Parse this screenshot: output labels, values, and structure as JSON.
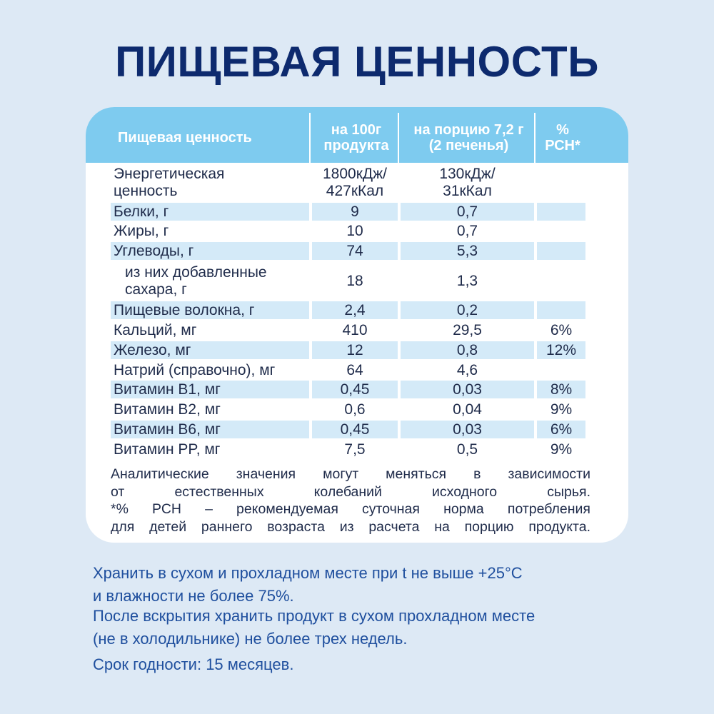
{
  "title": "ПИЩЕВАЯ ЦЕННОСТЬ",
  "table": {
    "header": [
      [
        "Пищевая ценность"
      ],
      [
        "на 100г",
        "продукта"
      ],
      [
        "на порцию 7,2 г",
        "(2 печенья)"
      ],
      [
        "%",
        "РСН*"
      ]
    ],
    "rows": [
      [
        [
          "Энергетическая",
          "ценность"
        ],
        [
          "1800кДж/",
          "427кКал"
        ],
        [
          "130кДж/",
          "31кКал"
        ],
        []
      ],
      [
        [
          "Белки, г"
        ],
        [
          "9"
        ],
        [
          "0,7"
        ],
        []
      ],
      [
        [
          "Жиры, г"
        ],
        [
          "10"
        ],
        [
          "0,7"
        ],
        []
      ],
      [
        [
          "Углеводы, г"
        ],
        [
          "74"
        ],
        [
          "5,3"
        ],
        []
      ],
      [
        [
          "из них добавленные",
          "сахара, г"
        ],
        [
          "18"
        ],
        [
          "1,3"
        ],
        []
      ],
      [
        [
          "Пищевые волокна, г"
        ],
        [
          "2,4"
        ],
        [
          "0,2"
        ],
        []
      ],
      [
        [
          "Кальций, мг"
        ],
        [
          "410"
        ],
        [
          "29,5"
        ],
        [
          "6%"
        ]
      ],
      [
        [
          "Железо, мг"
        ],
        [
          "12"
        ],
        [
          "0,8"
        ],
        [
          "12%"
        ]
      ],
      [
        [
          "Натрий (справочно), мг"
        ],
        [
          "64"
        ],
        [
          "4,6"
        ],
        []
      ],
      [
        [
          "Витамин B1, мг"
        ],
        [
          "0,45"
        ],
        [
          "0,03"
        ],
        [
          "8%"
        ]
      ],
      [
        [
          "Витамин B2, мг"
        ],
        [
          "0,6"
        ],
        [
          "0,04"
        ],
        [
          "9%"
        ]
      ],
      [
        [
          "Витамин B6, мг"
        ],
        [
          "0,45"
        ],
        [
          "0,03"
        ],
        [
          "6%"
        ]
      ],
      [
        [
          "Витамин PP, мг"
        ],
        [
          "7,5"
        ],
        [
          "0,5"
        ],
        [
          "9%"
        ]
      ]
    ]
  },
  "notes": [
    "Аналитические значения могут меняться в зависимости",
    "от естественных колебаний исходного сырья.",
    "*% РСН – рекомендуемая суточная норма потребления",
    "для детей раннего возраста из расчета на порцию продукта."
  ],
  "storage": [
    "Хранить в сухом и прохладном месте при t не выше +25°C",
    "и влажности не более 75%.",
    "После вскрытия хранить продукт в сухом прохладном месте",
    "(не в холодильнике) не более трех недель.",
    "Срок годности: 15 месяцев."
  ]
}
